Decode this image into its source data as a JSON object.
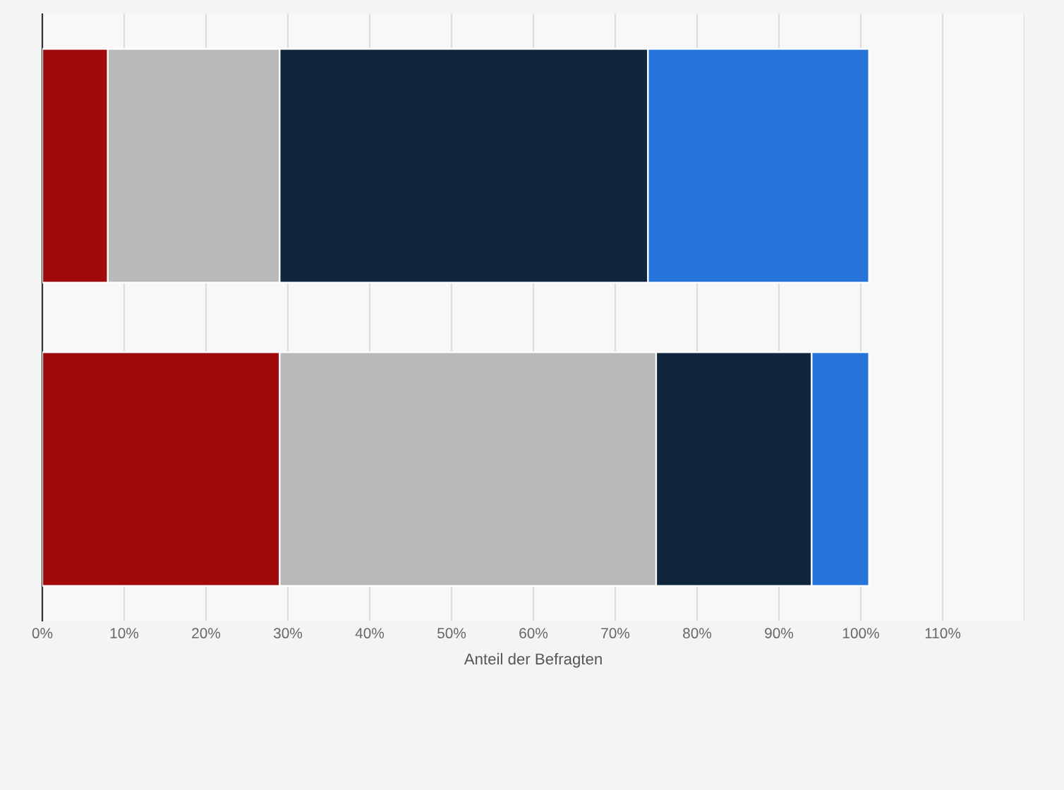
{
  "chart_data": {
    "type": "bar",
    "orientation": "horizontal",
    "stacked": true,
    "xlabel": "Anteil der Befragten",
    "categories": [
      null,
      null
    ],
    "series": [
      {
        "color": "#a10a0a",
        "values": [
          8,
          29
        ]
      },
      {
        "color": "#b9b9b9",
        "values": [
          21,
          46
        ]
      },
      {
        "color": "#0f263d",
        "values": [
          45,
          19
        ]
      },
      {
        "color": "#2575db",
        "values": [
          27,
          7
        ]
      }
    ],
    "xlim": [
      0,
      120
    ],
    "xticks": [
      {
        "value": 0,
        "label": "0%"
      },
      {
        "value": 10,
        "label": "10%"
      },
      {
        "value": 20,
        "label": "20%"
      },
      {
        "value": 30,
        "label": "30%"
      },
      {
        "value": 40,
        "label": "40%"
      },
      {
        "value": 50,
        "label": "50%"
      },
      {
        "value": 60,
        "label": "60%"
      },
      {
        "value": 70,
        "label": "70%"
      },
      {
        "value": 80,
        "label": "80%"
      },
      {
        "value": 90,
        "label": "90%"
      },
      {
        "value": 100,
        "label": "100%"
      },
      {
        "value": 110,
        "label": "110%"
      },
      {
        "value": 120,
        "label": null
      }
    ],
    "grid": "x",
    "legend": false
  }
}
